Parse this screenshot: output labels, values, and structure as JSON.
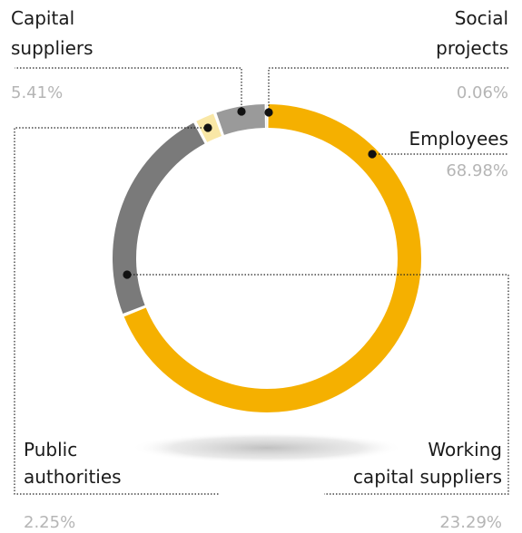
{
  "chart_data": {
    "type": "pie",
    "variant": "donut",
    "start": "top",
    "direction": "clockwise",
    "slices": [
      {
        "name": "Employees",
        "label_lines": [
          "Employees"
        ],
        "value": 68.98,
        "value_text": "68.98%",
        "color": "#f5b000"
      },
      {
        "name": "Working capital suppliers",
        "label_lines": [
          "Working",
          "capital suppliers"
        ],
        "value": 23.29,
        "value_text": "23.29%",
        "color": "#7a7a7a"
      },
      {
        "name": "Public authorities",
        "label_lines": [
          "Public",
          "authorities"
        ],
        "value": 2.25,
        "value_text": "2.25%",
        "color": "#f9e7a6"
      },
      {
        "name": "Capital suppliers",
        "label_lines": [
          "Capital",
          "suppliers"
        ],
        "value": 5.41,
        "value_text": "5.41%",
        "color": "#9a9a9a"
      },
      {
        "name": "Social projects",
        "label_lines": [
          "Social",
          "projects"
        ],
        "value": 0.06,
        "value_text": "0.06%",
        "color": "#d0d0d0"
      }
    ]
  }
}
